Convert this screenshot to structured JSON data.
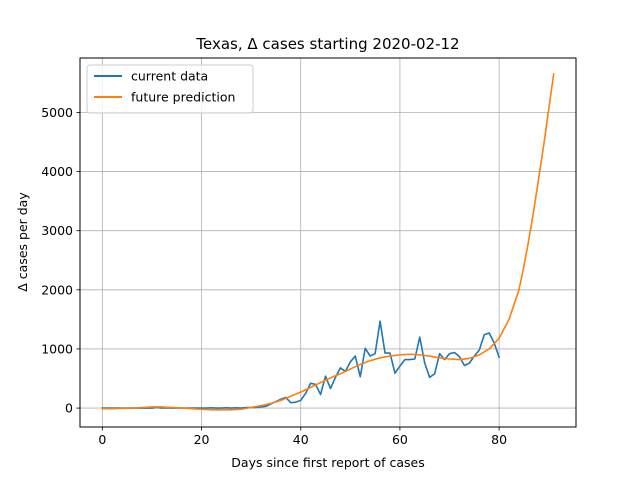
{
  "chart_data": {
    "type": "line",
    "title": "Texas, Δ cases starting 2020-02-12",
    "xlabel": "Days since first report of cases",
    "ylabel": "Δ cases per day",
    "xlim": [
      -4.5,
      95.5
    ],
    "ylim": [
      -320,
      5920
    ],
    "x_ticks": [
      0,
      20,
      40,
      60,
      80
    ],
    "y_ticks": [
      0,
      1000,
      2000,
      3000,
      4000,
      5000
    ],
    "grid": true,
    "legend": {
      "placement": "top-left"
    },
    "series": [
      {
        "name": "current data",
        "color": "#1f77b4",
        "x": [
          0,
          1,
          2,
          3,
          4,
          5,
          6,
          7,
          8,
          9,
          10,
          11,
          12,
          13,
          14,
          15,
          16,
          17,
          18,
          19,
          20,
          21,
          22,
          23,
          24,
          25,
          26,
          27,
          28,
          29,
          30,
          31,
          32,
          33,
          34,
          35,
          36,
          37,
          38,
          39,
          40,
          41,
          42,
          43,
          44,
          45,
          46,
          47,
          48,
          49,
          50,
          51,
          52,
          53,
          54,
          55,
          56,
          57,
          58,
          59,
          60,
          61,
          62,
          63,
          64,
          65,
          66,
          67,
          68,
          69,
          70,
          71,
          72,
          73,
          74,
          75,
          76,
          77,
          78,
          79,
          80
        ],
        "y": [
          0,
          0,
          0,
          0,
          0,
          0,
          0,
          0,
          0,
          0,
          0,
          10,
          0,
          5,
          0,
          0,
          0,
          0,
          0,
          0,
          0,
          0,
          5,
          0,
          0,
          5,
          0,
          5,
          0,
          10,
          10,
          10,
          20,
          30,
          70,
          110,
          150,
          180,
          90,
          100,
          130,
          250,
          420,
          400,
          230,
          540,
          330,
          520,
          680,
          620,
          780,
          880,
          530,
          1010,
          880,
          920,
          1470,
          930,
          930,
          590,
          710,
          820,
          820,
          830,
          1200,
          760,
          520,
          580,
          920,
          820,
          920,
          940,
          870,
          720,
          760,
          880,
          980,
          1240,
          1270,
          1100,
          860
        ]
      },
      {
        "name": "future prediction",
        "color": "#ff7f0e",
        "x": [
          0,
          2,
          4,
          6,
          8,
          10,
          12,
          14,
          16,
          18,
          20,
          22,
          24,
          26,
          28,
          30,
          32,
          34,
          36,
          38,
          40,
          42,
          44,
          46,
          48,
          50,
          52,
          54,
          56,
          58,
          60,
          62,
          64,
          66,
          68,
          70,
          72,
          74,
          76,
          78,
          80,
          82,
          84,
          85,
          86,
          87,
          88,
          89,
          90,
          91
        ],
        "y": [
          -10,
          -10,
          -5,
          0,
          10,
          20,
          20,
          10,
          0,
          -10,
          -20,
          -30,
          -30,
          -30,
          -20,
          10,
          40,
          80,
          130,
          200,
          270,
          350,
          430,
          510,
          580,
          660,
          740,
          800,
          850,
          880,
          900,
          910,
          900,
          880,
          850,
          830,
          820,
          840,
          900,
          1000,
          1180,
          1500,
          2000,
          2400,
          2850,
          3350,
          3900,
          4450,
          5050,
          5650
        ]
      }
    ]
  }
}
